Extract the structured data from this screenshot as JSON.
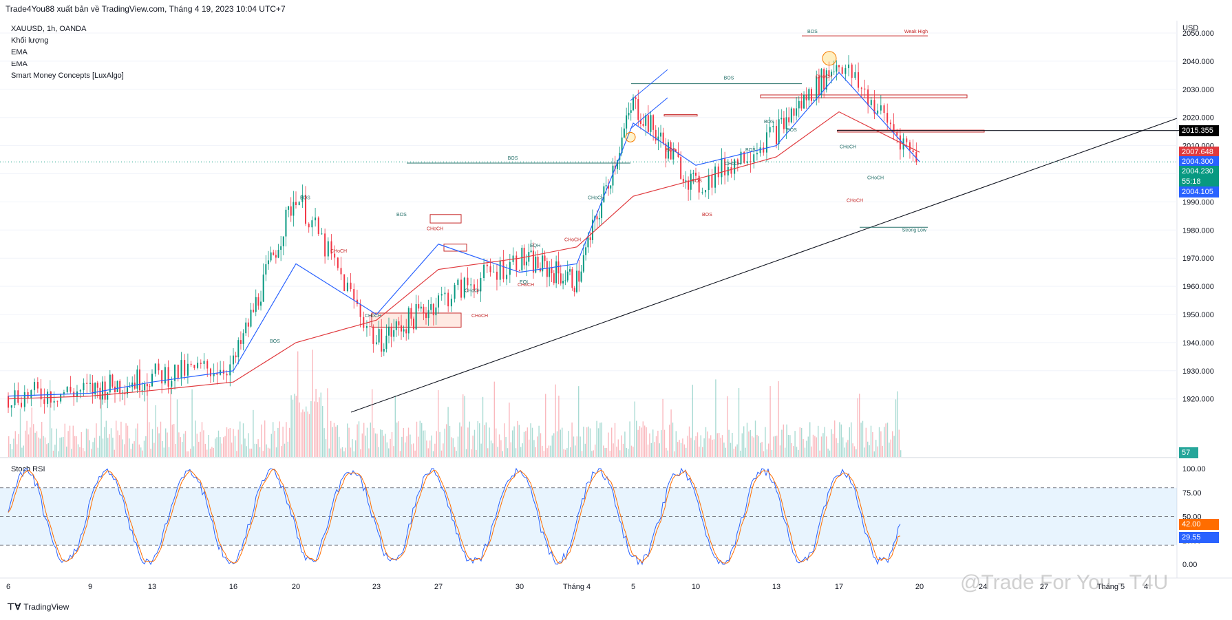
{
  "header": {
    "publisher": "Trade4You88 xuất bản về TradingView.com, Tháng 4 19, 2023 10:04 UTC+7"
  },
  "legend": [
    "XAUUSD, 1h, OANDA",
    "Khối lượng",
    "EMA",
    "EMA",
    "Smart Money Concepts [LuxAlgo]"
  ],
  "price_axis": {
    "unit": "USD",
    "ticks": [
      "2050.000",
      "2040.000",
      "2030.000",
      "2020.000",
      "2010.000",
      "2000.000",
      "1990.000",
      "1980.000",
      "1970.000",
      "1960.000",
      "1950.000",
      "1940.000",
      "1930.000",
      "1920.000"
    ]
  },
  "price_tags": [
    {
      "label": "2015.355",
      "color": "#000000"
    },
    {
      "label": "2007.648",
      "color": "#e03a3e"
    },
    {
      "label": "2004.300",
      "color": "#2962ff"
    },
    {
      "label": "2004.230",
      "color": "#089981"
    },
    {
      "label": "55:18",
      "color": "#089981"
    },
    {
      "label": "2004.105",
      "color": "#2962ff"
    }
  ],
  "volume_tag": "57",
  "stoch": {
    "title": "Stoch RSI",
    "ticks": [
      "100.00",
      "75.00",
      "50.00",
      "25.00",
      "0.00"
    ],
    "tags": [
      {
        "label": "42.00",
        "color": "#ff6d00"
      },
      {
        "label": "29.55",
        "color": "#2962ff"
      }
    ]
  },
  "time_axis": [
    "6",
    "9",
    "13",
    "16",
    "20",
    "23",
    "27",
    "30",
    "Tháng 4",
    "5",
    "10",
    "13",
    "17",
    "20",
    "24",
    "27",
    "Tháng 5",
    "4"
  ],
  "smc_labels": {
    "bos_major": "BOS",
    "bos": "BOS",
    "choch": "CHoCH",
    "eqh": "EQH",
    "eql": "EQL",
    "weak_high": "Weak High",
    "strong_low": "Strong Low"
  },
  "watermark": "@Trade For You - T4U",
  "footer": {
    "brand": "TradingView"
  },
  "chart_data": {
    "type": "line",
    "title": "XAUUSD, 1h, OANDA",
    "ylabel": "USD",
    "ylim": [
      1920,
      2055
    ],
    "x": [
      "6",
      "9",
      "13",
      "16",
      "20",
      "23",
      "27",
      "30",
      "Tháng 4",
      "5",
      "10",
      "13",
      "17",
      "20"
    ],
    "series": [
      {
        "name": "XAUUSD",
        "values": [
          1921,
          1923,
          1928,
          1932,
          1993,
          1940,
          1955,
          1970,
          1962,
          2025,
          1995,
          2015,
          2040,
          2004.23
        ]
      },
      {
        "name": "EMA",
        "values": [
          1921,
          1922,
          1926,
          1930,
          1968,
          1950,
          1975,
          1965,
          1968,
          2018,
          2003,
          2010,
          2036,
          2004.3
        ]
      },
      {
        "name": "EMA",
        "values": [
          1920,
          1921,
          1923,
          1926,
          1940,
          1948,
          1966,
          1970,
          1974,
          1992,
          1998,
          2006,
          2022,
          2007.648
        ]
      }
    ],
    "last_price": 2004.23,
    "weak_high": 2049,
    "strong_low": 1981,
    "horizontal_line": 2015.355,
    "stoch_rsi": {
      "ylim": [
        0,
        100
      ],
      "bands": [
        20,
        50,
        80
      ],
      "k_last": 42.0,
      "d_last": 29.55
    }
  }
}
